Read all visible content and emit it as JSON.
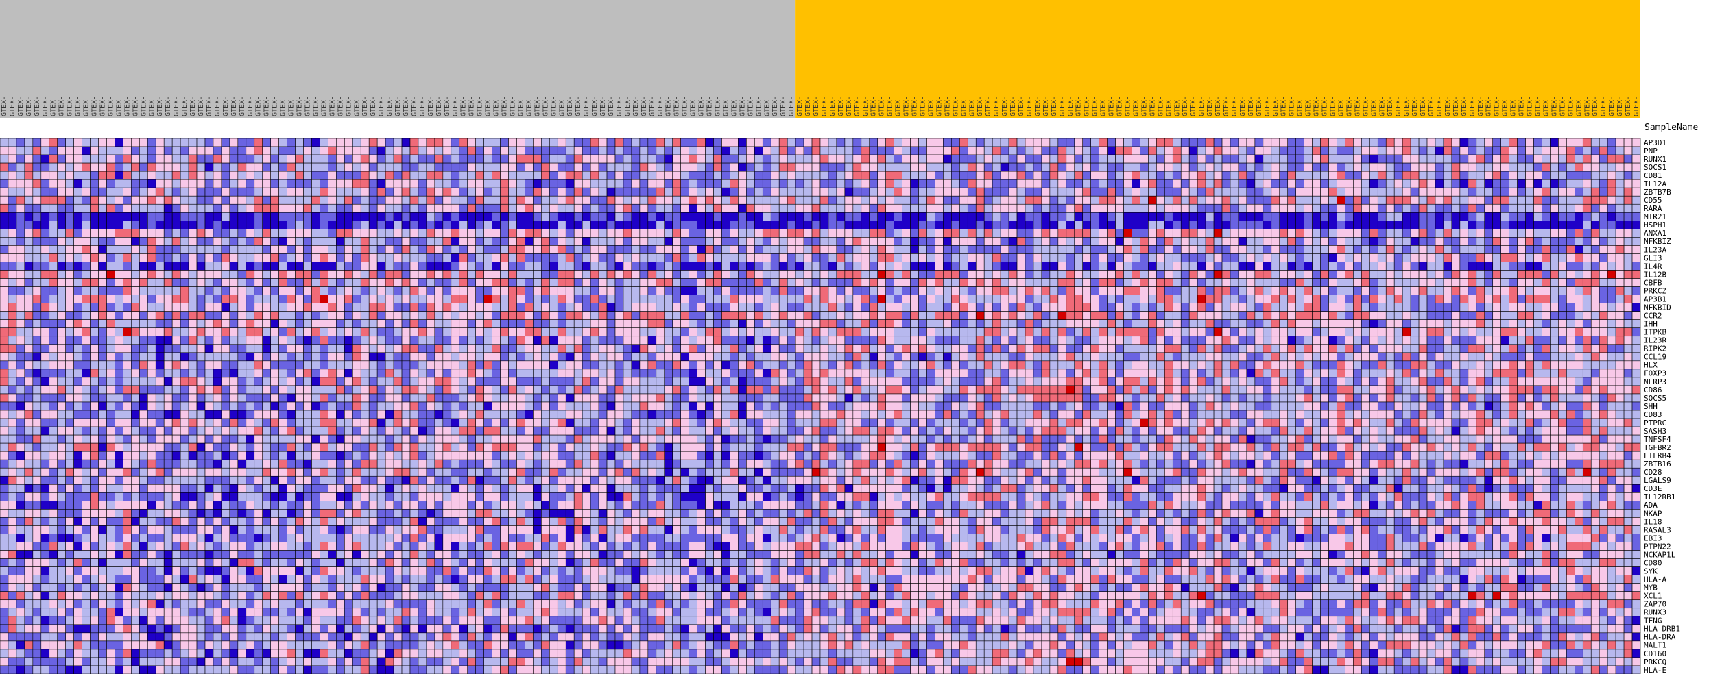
{
  "colors": {
    "group_a_header": "#bebebe",
    "group_b_header": "#ffc000",
    "grid": "#000000",
    "scale": [
      "#1f00c8",
      "#6a63e2",
      "#b7b8ee",
      "#f8c8e8",
      "#f06a78",
      "#d40000"
    ]
  },
  "chart_data": {
    "type": "heatmap",
    "title": "",
    "row_axis_title": "SampleName",
    "n_columns": 200,
    "group_a_columns": 97,
    "group_b_columns": 103,
    "value_range": [
      0,
      5
    ],
    "column_label_prefix": "GTEX-",
    "rows": [
      "AP3D1",
      "PNP",
      "RUNX1",
      "SOCS1",
      "CD81",
      "IL12A",
      "ZBTB7B",
      "CD55",
      "RARA",
      "MIR21",
      "HSPH1",
      "ANXA1",
      "NFKBIZ",
      "IL23A",
      "GLI3",
      "IL4R",
      "IL12B",
      "CBFB",
      "PRKCZ",
      "AP3B1",
      "NFKBID",
      "CCR2",
      "IHH",
      "ITPKB",
      "IL23R",
      "RIPK2",
      "CCL19",
      "HLX",
      "FOXP3",
      "NLRP3",
      "CD86",
      "SOCS5",
      "SHH",
      "CD83",
      "PTPRC",
      "SASH3",
      "TNFSF4",
      "TGFBR2",
      "LILRB4",
      "ZBTB16",
      "CD28",
      "LGALS9",
      "CD3E",
      "IL12RB1",
      "ADA",
      "NKAP",
      "IL18",
      "RASAL3",
      "EBI3",
      "PTPN22",
      "NCKAP1L",
      "CD80",
      "SYK",
      "HLA-A",
      "MYB",
      "XCL1",
      "ZAP70",
      "RUNX3",
      "TFNG",
      "HLA-DRB1",
      "HLA-DRA",
      "MALT1",
      "CD160",
      "PRKCQ",
      "HLA-E"
    ]
  }
}
